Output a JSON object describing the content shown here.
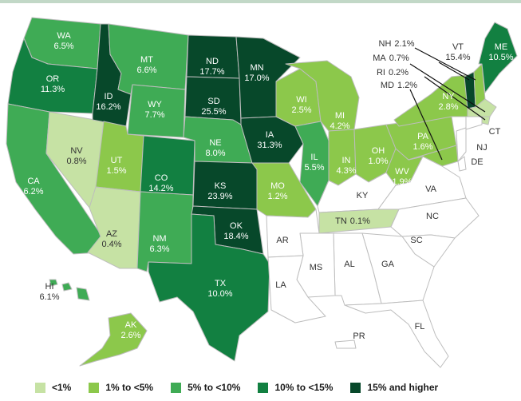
{
  "colors": {
    "lt1": "#c6e2a4",
    "r1to5": "#8cc84b",
    "r5to10": "#3fab55",
    "r10to15": "#128041",
    "r15plus": "#07482a",
    "none": "#ffffff",
    "border": "#bdbdbd"
  },
  "legend": [
    {
      "label": "<1%",
      "color_key": "lt1"
    },
    {
      "label": "1% to <5%",
      "color_key": "r1to5"
    },
    {
      "label": "5% to <10%",
      "color_key": "r5to10"
    },
    {
      "label": "10% to <15%",
      "color_key": "r10to15"
    },
    {
      "label": "15% and higher",
      "color_key": "r15plus"
    }
  ],
  "states": {
    "WA": {
      "name": "WA",
      "value": "6.5%",
      "bin": "r5to10"
    },
    "OR": {
      "name": "OR",
      "value": "11.3%",
      "bin": "r10to15"
    },
    "CA": {
      "name": "CA",
      "value": "6.2%",
      "bin": "r5to10"
    },
    "ID": {
      "name": "ID",
      "value": "16.2%",
      "bin": "r15plus"
    },
    "NV": {
      "name": "NV",
      "value": "0.8%",
      "bin": "lt1"
    },
    "MT": {
      "name": "MT",
      "value": "6.6%",
      "bin": "r5to10"
    },
    "WY": {
      "name": "WY",
      "value": "7.7%",
      "bin": "r5to10"
    },
    "UT": {
      "name": "UT",
      "value": "1.5%",
      "bin": "r1to5"
    },
    "AZ": {
      "name": "AZ",
      "value": "0.4%",
      "bin": "lt1"
    },
    "CO": {
      "name": "CO",
      "value": "14.2%",
      "bin": "r10to15"
    },
    "NM": {
      "name": "NM",
      "value": "6.3%",
      "bin": "r5to10"
    },
    "ND": {
      "name": "ND",
      "value": "17.7%",
      "bin": "r15plus"
    },
    "SD": {
      "name": "SD",
      "value": "25.5%",
      "bin": "r15plus"
    },
    "NE": {
      "name": "NE",
      "value": "8.0%",
      "bin": "r5to10"
    },
    "KS": {
      "name": "KS",
      "value": "23.9%",
      "bin": "r15plus"
    },
    "OK": {
      "name": "OK",
      "value": "18.4%",
      "bin": "r15plus"
    },
    "TX": {
      "name": "TX",
      "value": "10.0%",
      "bin": "r10to15"
    },
    "MN": {
      "name": "MN",
      "value": "17.0%",
      "bin": "r15plus"
    },
    "IA": {
      "name": "IA",
      "value": "31.3%",
      "bin": "r15plus"
    },
    "MO": {
      "name": "MO",
      "value": "1.2%",
      "bin": "r1to5"
    },
    "WI": {
      "name": "WI",
      "value": "2.5%",
      "bin": "r1to5"
    },
    "IL": {
      "name": "IL",
      "value": "5.5%",
      "bin": "r5to10"
    },
    "MI": {
      "name": "MI",
      "value": "4.2%",
      "bin": "r1to5"
    },
    "IN": {
      "name": "IN",
      "value": "4.3%",
      "bin": "r1to5"
    },
    "OH": {
      "name": "OH",
      "value": "1.0%",
      "bin": "r1to5"
    },
    "WV": {
      "name": "WV",
      "value": "1.9%",
      "bin": "r1to5"
    },
    "PA": {
      "name": "PA",
      "value": "1.6%",
      "bin": "r1to5"
    },
    "NY": {
      "name": "NY",
      "value": "2.8%",
      "bin": "r1to5"
    },
    "ME": {
      "name": "ME",
      "value": "10.5%",
      "bin": "r10to15"
    },
    "VT": {
      "name": "VT",
      "value": "15.4%",
      "bin": "r15plus"
    },
    "NH": {
      "name": "NH",
      "value": "2.1%",
      "bin": "r1to5"
    },
    "MA": {
      "name": "MA",
      "value": "0.7%",
      "bin": "lt1"
    },
    "RI": {
      "name": "RI",
      "value": "0.2%",
      "bin": "lt1"
    },
    "MD": {
      "name": "MD",
      "value": "1.2%",
      "bin": "r1to5"
    },
    "TN": {
      "name": "TN",
      "value": "0.1%",
      "bin": "lt1"
    },
    "AK": {
      "name": "AK",
      "value": "2.6%",
      "bin": "r1to5"
    },
    "HI": {
      "name": "HI",
      "value": "6.1%",
      "bin": "r5to10"
    },
    "KY": {
      "name": "KY",
      "value": "",
      "bin": "none"
    },
    "VA": {
      "name": "VA",
      "value": "",
      "bin": "none"
    },
    "NC": {
      "name": "NC",
      "value": "",
      "bin": "none"
    },
    "SC": {
      "name": "SC",
      "value": "",
      "bin": "none"
    },
    "GA": {
      "name": "GA",
      "value": "",
      "bin": "none"
    },
    "AL": {
      "name": "AL",
      "value": "",
      "bin": "none"
    },
    "MS": {
      "name": "MS",
      "value": "",
      "bin": "none"
    },
    "AR": {
      "name": "AR",
      "value": "",
      "bin": "none"
    },
    "LA": {
      "name": "LA",
      "value": "",
      "bin": "none"
    },
    "FL": {
      "name": "FL",
      "value": "",
      "bin": "none"
    },
    "PR": {
      "name": "PR",
      "value": "",
      "bin": "none"
    },
    "CT": {
      "name": "CT",
      "value": "",
      "bin": "none"
    },
    "NJ": {
      "name": "NJ",
      "value": "",
      "bin": "none"
    },
    "DE": {
      "name": "DE",
      "value": "",
      "bin": "none"
    }
  }
}
